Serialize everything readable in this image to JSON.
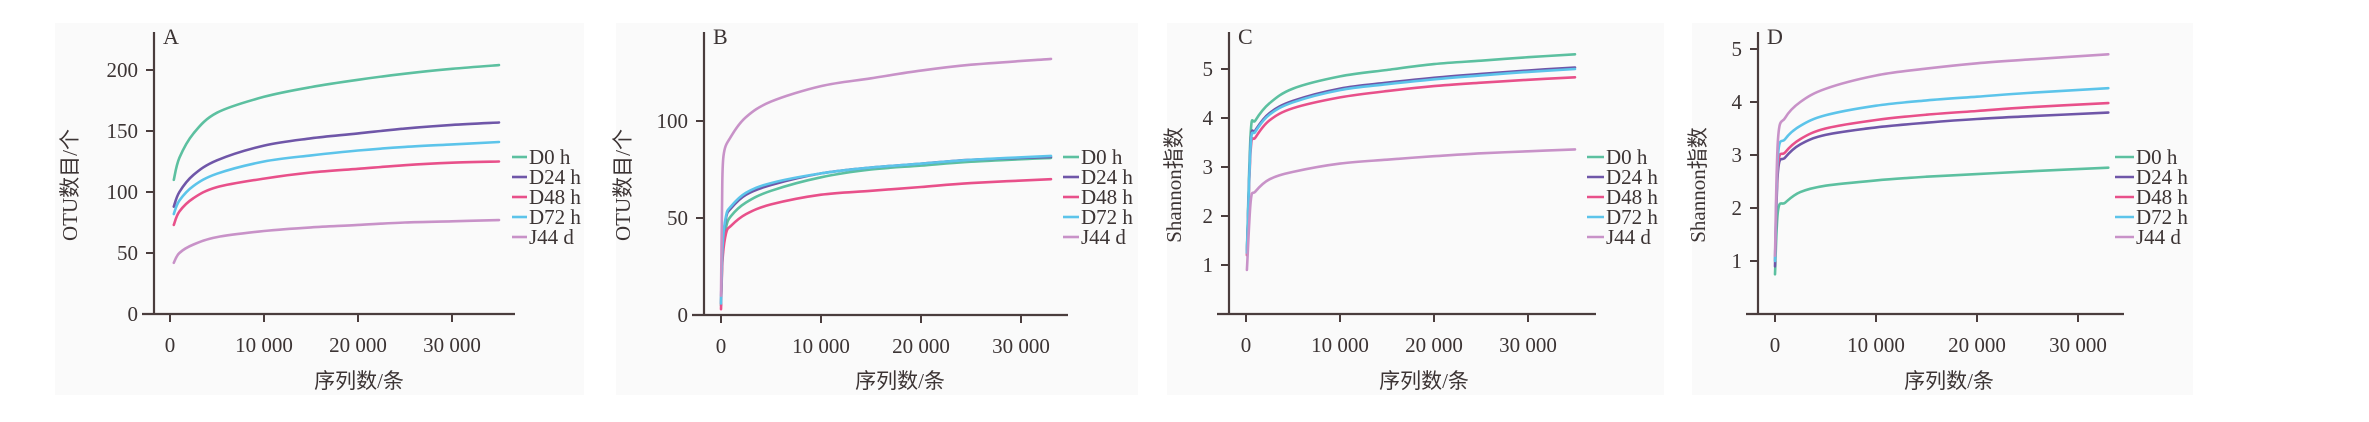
{
  "colors": {
    "D0 h": "#5cc0a0",
    "D24 h": "#6f56a8",
    "D48 h": "#e8508a",
    "D72 h": "#5cc4ea",
    "J44 d": "#c892c8",
    "axis": "#4a3d3d",
    "panel_bg": "#fafafa"
  },
  "chart_data": [
    {
      "type": "line",
      "panel": "A",
      "xlabel": "序列数/条",
      "ylabel": "OTU数目/个",
      "xlim": [
        0,
        35000
      ],
      "ylim": [
        0,
        230
      ],
      "xticks": [
        "0",
        "10 000",
        "20 000",
        "30 000"
      ],
      "xtick_values": [
        0,
        10000,
        20000,
        30000
      ],
      "yticks": [
        "0",
        "50",
        "100",
        "150",
        "200"
      ],
      "ytick_values": [
        0,
        50,
        100,
        150,
        200
      ],
      "legend": [
        "D0 h",
        "D24 h",
        "D48 h",
        "D72 h",
        "J44 d"
      ],
      "legend_position": "right",
      "series": [
        {
          "name": "D0 h",
          "points": [
            [
              400,
              110
            ],
            [
              1000,
              128
            ],
            [
              2500,
              148
            ],
            [
              5000,
              165
            ],
            [
              10000,
              178
            ],
            [
              15000,
              186
            ],
            [
              20000,
              192
            ],
            [
              25000,
              197
            ],
            [
              30000,
              201
            ],
            [
              35000,
              204
            ]
          ]
        },
        {
          "name": "D24 h",
          "points": [
            [
              400,
              88
            ],
            [
              1000,
              100
            ],
            [
              2500,
              114
            ],
            [
              5000,
              126
            ],
            [
              10000,
              138
            ],
            [
              15000,
              144
            ],
            [
              20000,
              148
            ],
            [
              25000,
              152
            ],
            [
              30000,
              155
            ],
            [
              35000,
              157
            ]
          ]
        },
        {
          "name": "D48 h",
          "points": [
            [
              400,
              73
            ],
            [
              1000,
              84
            ],
            [
              2500,
              95
            ],
            [
              5000,
              104
            ],
            [
              10000,
              111
            ],
            [
              15000,
              116
            ],
            [
              20000,
              119
            ],
            [
              25000,
              122
            ],
            [
              30000,
              124
            ],
            [
              35000,
              125
            ]
          ]
        },
        {
          "name": "D72 h",
          "points": [
            [
              400,
              82
            ],
            [
              1000,
              93
            ],
            [
              2500,
              105
            ],
            [
              5000,
              115
            ],
            [
              10000,
              125
            ],
            [
              15000,
              130
            ],
            [
              20000,
              134
            ],
            [
              25000,
              137
            ],
            [
              30000,
              139
            ],
            [
              35000,
              141
            ]
          ]
        },
        {
          "name": "J44 d",
          "points": [
            [
              400,
              42
            ],
            [
              1000,
              50
            ],
            [
              2500,
              57
            ],
            [
              5000,
              63
            ],
            [
              10000,
              68
            ],
            [
              15000,
              71
            ],
            [
              20000,
              73
            ],
            [
              25000,
              75
            ],
            [
              30000,
              76
            ],
            [
              35000,
              77
            ]
          ]
        }
      ]
    },
    {
      "type": "line",
      "panel": "B",
      "xlabel": "序列数/条",
      "ylabel": "OTU数目/个",
      "xlim": [
        0,
        33000
      ],
      "ylim": [
        0,
        145
      ],
      "xticks": [
        "0",
        "10 000",
        "20 000",
        "30 000"
      ],
      "xtick_values": [
        0,
        10000,
        20000,
        30000
      ],
      "yticks": [
        "0",
        "50",
        "100"
      ],
      "ytick_values": [
        0,
        50,
        100
      ],
      "legend": [
        "D0 h",
        "D24 h",
        "D48 h",
        "D72 h",
        "J44 d"
      ],
      "legend_position": "right",
      "series": [
        {
          "name": "D0 h",
          "points": [
            [
              0,
              5
            ],
            [
              150,
              30
            ],
            [
              500,
              45
            ],
            [
              1000,
              51
            ],
            [
              2500,
              58
            ],
            [
              5000,
              64
            ],
            [
              10000,
              71
            ],
            [
              15000,
              75
            ],
            [
              20000,
              77
            ],
            [
              25000,
              79
            ],
            [
              33000,
              81
            ]
          ]
        },
        {
          "name": "D24 h",
          "points": [
            [
              0,
              6
            ],
            [
              150,
              34
            ],
            [
              500,
              50
            ],
            [
              1000,
              55
            ],
            [
              2500,
              62
            ],
            [
              5000,
              67
            ],
            [
              10000,
              73
            ],
            [
              15000,
              76
            ],
            [
              20000,
              78
            ],
            [
              25000,
              80
            ],
            [
              33000,
              81.5
            ]
          ]
        },
        {
          "name": "D48 h",
          "points": [
            [
              0,
              3
            ],
            [
              150,
              28
            ],
            [
              500,
              42
            ],
            [
              1000,
              46
            ],
            [
              2500,
              52
            ],
            [
              5000,
              57
            ],
            [
              10000,
              62
            ],
            [
              15000,
              64
            ],
            [
              20000,
              66
            ],
            [
              25000,
              68
            ],
            [
              33000,
              70
            ]
          ]
        },
        {
          "name": "D72 h",
          "points": [
            [
              0,
              6
            ],
            [
              150,
              35
            ],
            [
              500,
              51
            ],
            [
              1000,
              56
            ],
            [
              2500,
              63
            ],
            [
              5000,
              68
            ],
            [
              10000,
              73
            ],
            [
              15000,
              76
            ],
            [
              20000,
              78
            ],
            [
              25000,
              80
            ],
            [
              33000,
              82
            ]
          ]
        },
        {
          "name": "J44 d",
          "points": [
            [
              0,
              10
            ],
            [
              100,
              55
            ],
            [
              250,
              82
            ],
            [
              1000,
              92
            ],
            [
              2500,
              102
            ],
            [
              5000,
              110
            ],
            [
              10000,
              118
            ],
            [
              15000,
              122
            ],
            [
              20000,
              126
            ],
            [
              25000,
              129
            ],
            [
              33000,
              132
            ]
          ]
        }
      ]
    },
    {
      "type": "line",
      "panel": "C",
      "xlabel": "序列数/条",
      "ylabel": "Shannon指数",
      "xlim": [
        0,
        35000
      ],
      "ylim": [
        0,
        5.75
      ],
      "xticks": [
        "0",
        "10 000",
        "20 000",
        "30 000"
      ],
      "xtick_values": [
        0,
        10000,
        20000,
        30000
      ],
      "yticks": [
        "1",
        "2",
        "3",
        "4",
        "5"
      ],
      "ytick_values": [
        1,
        2,
        3,
        4,
        5
      ],
      "legend": [
        "D0 h",
        "D24 h",
        "D48 h",
        "D72 h",
        "J44 d"
      ],
      "legend_position": "right",
      "series": [
        {
          "name": "D0 h",
          "points": [
            [
              100,
              1.3
            ],
            [
              500,
              3.7
            ],
            [
              1000,
              3.95
            ],
            [
              2500,
              4.3
            ],
            [
              5000,
              4.6
            ],
            [
              10000,
              4.85
            ],
            [
              15000,
              4.98
            ],
            [
              20000,
              5.1
            ],
            [
              25000,
              5.17
            ],
            [
              30000,
              5.24
            ],
            [
              35000,
              5.3
            ]
          ]
        },
        {
          "name": "D24 h",
          "points": [
            [
              100,
              1.25
            ],
            [
              500,
              3.5
            ],
            [
              1000,
              3.75
            ],
            [
              2500,
              4.1
            ],
            [
              5000,
              4.35
            ],
            [
              10000,
              4.6
            ],
            [
              15000,
              4.72
            ],
            [
              20000,
              4.82
            ],
            [
              25000,
              4.9
            ],
            [
              30000,
              4.97
            ],
            [
              35000,
              5.03
            ]
          ]
        },
        {
          "name": "D48 h",
          "points": [
            [
              100,
              1.2
            ],
            [
              500,
              3.35
            ],
            [
              1000,
              3.6
            ],
            [
              2500,
              3.95
            ],
            [
              5000,
              4.2
            ],
            [
              10000,
              4.42
            ],
            [
              15000,
              4.55
            ],
            [
              20000,
              4.65
            ],
            [
              25000,
              4.72
            ],
            [
              30000,
              4.78
            ],
            [
              35000,
              4.83
            ]
          ]
        },
        {
          "name": "D72 h",
          "points": [
            [
              100,
              1.25
            ],
            [
              500,
              3.45
            ],
            [
              1000,
              3.72
            ],
            [
              2500,
              4.07
            ],
            [
              5000,
              4.32
            ],
            [
              10000,
              4.57
            ],
            [
              15000,
              4.69
            ],
            [
              20000,
              4.79
            ],
            [
              25000,
              4.87
            ],
            [
              30000,
              4.94
            ],
            [
              35000,
              5.0
            ]
          ]
        },
        {
          "name": "J44 d",
          "points": [
            [
              100,
              0.9
            ],
            [
              500,
              2.3
            ],
            [
              1000,
              2.5
            ],
            [
              2500,
              2.75
            ],
            [
              5000,
              2.9
            ],
            [
              10000,
              3.07
            ],
            [
              15000,
              3.15
            ],
            [
              20000,
              3.22
            ],
            [
              25000,
              3.28
            ],
            [
              30000,
              3.32
            ],
            [
              35000,
              3.36
            ]
          ]
        }
      ]
    },
    {
      "type": "line",
      "panel": "D",
      "xlabel": "序列数/条",
      "ylabel": "Shannon指数",
      "xlim": [
        0,
        33000
      ],
      "ylim": [
        0,
        5.35
      ],
      "xticks": [
        "0",
        "10 000",
        "20 000",
        "30 000"
      ],
      "xtick_values": [
        0,
        10000,
        20000,
        30000
      ],
      "yticks": [
        "1",
        "2",
        "3",
        "4",
        "5"
      ],
      "ytick_values": [
        1,
        2,
        3,
        4,
        5
      ],
      "legend": [
        "D0 h",
        "D24 h",
        "D48 h",
        "D72 h",
        "J44 d"
      ],
      "legend_position": "right",
      "series": [
        {
          "name": "D0 h",
          "points": [
            [
              0,
              0.75
            ],
            [
              300,
              1.95
            ],
            [
              1000,
              2.1
            ],
            [
              2500,
              2.3
            ],
            [
              5000,
              2.42
            ],
            [
              10000,
              2.52
            ],
            [
              15000,
              2.59
            ],
            [
              20000,
              2.64
            ],
            [
              25000,
              2.69
            ],
            [
              33000,
              2.76
            ]
          ]
        },
        {
          "name": "D24 h",
          "points": [
            [
              0,
              0.9
            ],
            [
              300,
              2.7
            ],
            [
              1000,
              2.95
            ],
            [
              2500,
              3.2
            ],
            [
              5000,
              3.38
            ],
            [
              10000,
              3.52
            ],
            [
              15000,
              3.61
            ],
            [
              20000,
              3.68
            ],
            [
              25000,
              3.73
            ],
            [
              33000,
              3.8
            ]
          ]
        },
        {
          "name": "D48 h",
          "points": [
            [
              0,
              1.0
            ],
            [
              300,
              2.8
            ],
            [
              1000,
              3.05
            ],
            [
              2500,
              3.3
            ],
            [
              5000,
              3.5
            ],
            [
              10000,
              3.66
            ],
            [
              15000,
              3.76
            ],
            [
              20000,
              3.83
            ],
            [
              25000,
              3.9
            ],
            [
              33000,
              3.98
            ]
          ]
        },
        {
          "name": "D72 h",
          "points": [
            [
              0,
              1.0
            ],
            [
              300,
              3.0
            ],
            [
              1000,
              3.3
            ],
            [
              2500,
              3.55
            ],
            [
              5000,
              3.75
            ],
            [
              10000,
              3.93
            ],
            [
              15000,
              4.03
            ],
            [
              20000,
              4.1
            ],
            [
              25000,
              4.17
            ],
            [
              33000,
              4.26
            ]
          ]
        },
        {
          "name": "J44 d",
          "points": [
            [
              0,
              1.1
            ],
            [
              300,
              3.3
            ],
            [
              1000,
              3.7
            ],
            [
              2500,
              4.0
            ],
            [
              5000,
              4.25
            ],
            [
              10000,
              4.5
            ],
            [
              15000,
              4.63
            ],
            [
              20000,
              4.73
            ],
            [
              25000,
              4.8
            ],
            [
              33000,
              4.9
            ]
          ]
        }
      ]
    }
  ]
}
